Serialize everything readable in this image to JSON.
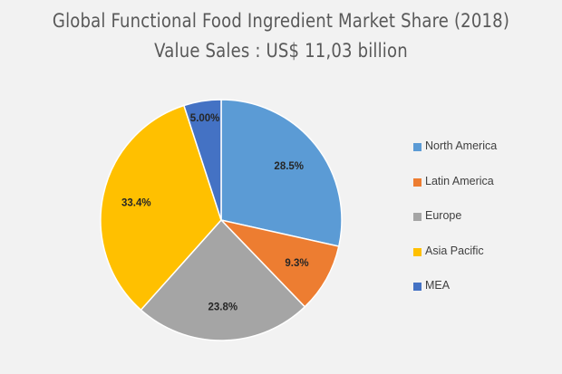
{
  "chart_data": {
    "type": "pie",
    "title": "Global Functional  Food Ingredient Market Share (2018)",
    "subtitle": "Value Sales : US$ 11,03 billion",
    "categories": [
      "North America",
      "Latin America",
      "Europe",
      "Asia Pacific",
      "MEA"
    ],
    "values": [
      28.5,
      9.3,
      23.8,
      33.4,
      5.0
    ],
    "data_labels": [
      "28.5%",
      "9.3%",
      "23.8%",
      "33.4%",
      "5.00%"
    ],
    "colors": [
      "#5b9bd5",
      "#ed7d31",
      "#a5a5a5",
      "#ffc000",
      "#4472c4"
    ],
    "start_angle": "12 o'clock",
    "direction": "clockwise",
    "legend_position": "right"
  }
}
